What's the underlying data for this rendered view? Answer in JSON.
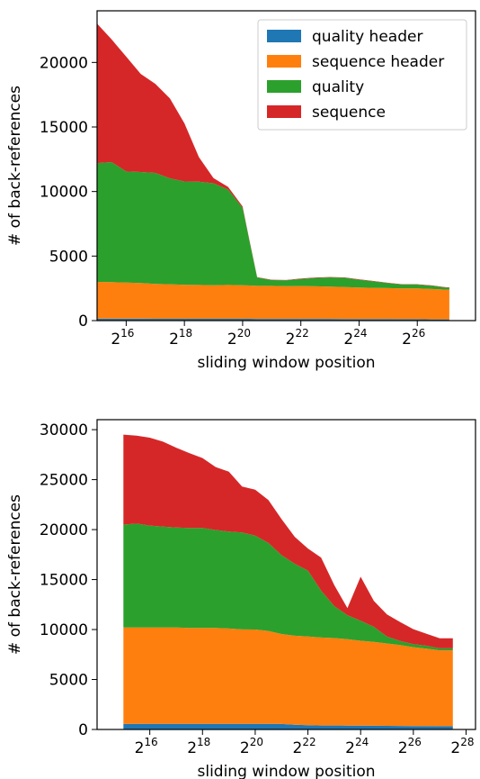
{
  "colors": {
    "quality_header": "#1f77b4",
    "sequence_header": "#ff7f0e",
    "quality": "#2ca02c",
    "sequence": "#d62728"
  },
  "chart_data": [
    {
      "type": "area",
      "stacked": true,
      "xscale": "log2",
      "xlabel": "sliding window position",
      "ylabel": "# of back-references",
      "xlim": [
        32768,
        268435456
      ],
      "ylim": [
        0,
        24000
      ],
      "xticks": [
        {
          "base": "2",
          "exp": "16"
        },
        {
          "base": "2",
          "exp": "18"
        },
        {
          "base": "2",
          "exp": "20"
        },
        {
          "base": "2",
          "exp": "22"
        },
        {
          "base": "2",
          "exp": "24"
        },
        {
          "base": "2",
          "exp": "26"
        }
      ],
      "yticks": [
        "0",
        "5000",
        "10000",
        "15000",
        "20000"
      ],
      "legend": {
        "placement": "top-right",
        "entries": [
          "quality header",
          "sequence header",
          "quality",
          "sequence"
        ]
      },
      "x_exponents": [
        15.0,
        15.5,
        16.0,
        16.5,
        17.0,
        17.5,
        18.0,
        18.5,
        19.0,
        19.5,
        20.0,
        20.25,
        20.5,
        21.0,
        21.5,
        22.0,
        22.5,
        23.0,
        23.5,
        24.0,
        24.5,
        25.0,
        25.5,
        26.0,
        26.5,
        27.0,
        27.1
      ],
      "series": [
        {
          "name": "quality header",
          "values": [
            150,
            150,
            150,
            150,
            140,
            140,
            140,
            140,
            140,
            140,
            140,
            140,
            130,
            130,
            130,
            130,
            130,
            130,
            120,
            120,
            120,
            120,
            110,
            110,
            100,
            100,
            100
          ]
        },
        {
          "name": "sequence header",
          "values": [
            2850,
            2830,
            2800,
            2760,
            2700,
            2680,
            2640,
            2620,
            2600,
            2620,
            2600,
            2580,
            2560,
            2560,
            2540,
            2550,
            2530,
            2500,
            2480,
            2450,
            2420,
            2400,
            2380,
            2380,
            2350,
            2300,
            2300
          ]
        },
        {
          "name": "quality",
          "values": [
            9200,
            9300,
            8600,
            8600,
            8600,
            8200,
            8000,
            8000,
            7900,
            7400,
            6000,
            3300,
            650,
            450,
            450,
            550,
            650,
            720,
            720,
            600,
            500,
            380,
            300,
            300,
            250,
            150,
            150
          ]
        },
        {
          "name": "sequence",
          "values": [
            10800,
            9500,
            8900,
            7600,
            6900,
            6200,
            4500,
            1900,
            400,
            200,
            100,
            50,
            30,
            30,
            30,
            30,
            30,
            30,
            30,
            30,
            30,
            30,
            30,
            30,
            30,
            30,
            30
          ]
        }
      ]
    },
    {
      "type": "area",
      "stacked": true,
      "xscale": "log2",
      "xlabel": "sliding window position",
      "ylabel": "# of back-references",
      "xlim": [
        16384,
        344148958
      ],
      "ylim": [
        0,
        31000
      ],
      "xticks": [
        {
          "base": "2",
          "exp": "16"
        },
        {
          "base": "2",
          "exp": "18"
        },
        {
          "base": "2",
          "exp": "20"
        },
        {
          "base": "2",
          "exp": "22"
        },
        {
          "base": "2",
          "exp": "24"
        },
        {
          "base": "2",
          "exp": "26"
        },
        {
          "base": "2",
          "exp": "28"
        }
      ],
      "yticks": [
        "0",
        "5000",
        "10000",
        "15000",
        "20000",
        "25000",
        "30000"
      ],
      "legend": null,
      "x_exponents": [
        15.0,
        15.5,
        16.0,
        16.5,
        17.0,
        17.5,
        18.0,
        18.5,
        19.0,
        19.5,
        20.0,
        20.5,
        21.0,
        21.5,
        22.0,
        22.5,
        23.0,
        23.5,
        24.0,
        24.5,
        25.0,
        25.5,
        26.0,
        26.5,
        27.0,
        27.5
      ],
      "series": [
        {
          "name": "quality header",
          "values": [
            550,
            560,
            560,
            560,
            560,
            560,
            560,
            560,
            560,
            560,
            560,
            560,
            550,
            480,
            420,
            400,
            400,
            390,
            380,
            370,
            360,
            350,
            340,
            330,
            320,
            320
          ]
        },
        {
          "name": "sequence header",
          "values": [
            9650,
            9640,
            9640,
            9640,
            9640,
            9600,
            9600,
            9600,
            9540,
            9450,
            9440,
            9300,
            9000,
            8900,
            8880,
            8800,
            8750,
            8650,
            8500,
            8400,
            8250,
            8100,
            7900,
            7750,
            7600,
            7600
          ]
        },
        {
          "name": "quality",
          "values": [
            10300,
            10400,
            10200,
            10100,
            10000,
            10000,
            10000,
            9800,
            9700,
            9700,
            9400,
            8800,
            7900,
            7200,
            6600,
            4700,
            3200,
            2400,
            2000,
            1500,
            700,
            400,
            300,
            300,
            200,
            200
          ]
        },
        {
          "name": "sequence",
          "values": [
            9000,
            8800,
            8800,
            8500,
            8000,
            7500,
            7000,
            6300,
            6000,
            4600,
            4600,
            4300,
            3600,
            2700,
            2200,
            3300,
            2100,
            700,
            4400,
            2600,
            2200,
            1900,
            1500,
            1200,
            1000,
            1000
          ]
        }
      ]
    }
  ]
}
